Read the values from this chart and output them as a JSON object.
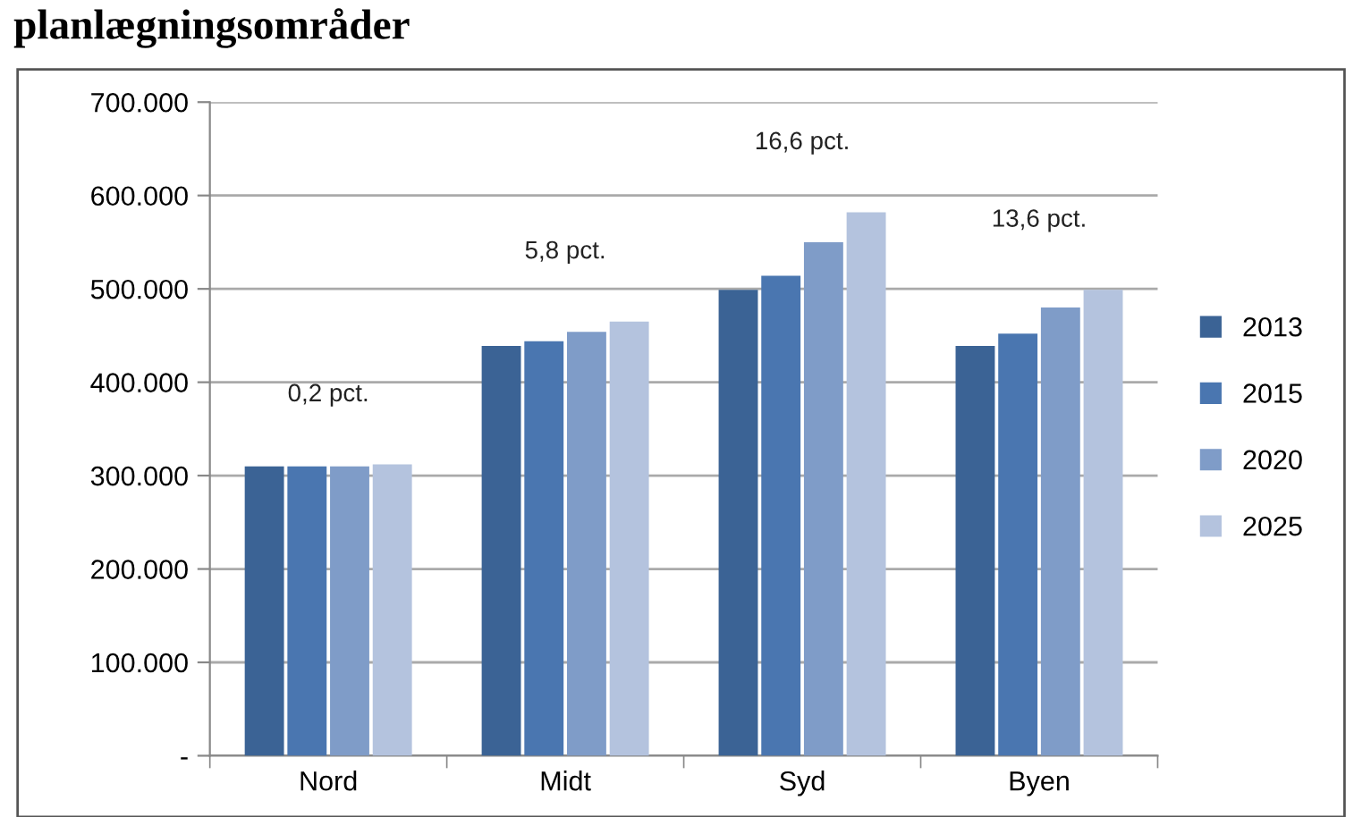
{
  "chart_data": {
    "type": "bar",
    "title": "planlægningsområder",
    "categories": [
      "Nord",
      "Midt",
      "Syd",
      "Byen"
    ],
    "series": [
      {
        "name": "2013",
        "color": "#3b6395",
        "values": [
          310000,
          439000,
          499000,
          439000
        ]
      },
      {
        "name": "2015",
        "color": "#4a76b0",
        "values": [
          310000,
          444000,
          514000,
          452000
        ]
      },
      {
        "name": "2020",
        "color": "#7f9cc8",
        "values": [
          310000,
          454000,
          550000,
          480000
        ]
      },
      {
        "name": "2025",
        "color": "#b4c3de",
        "values": [
          312000,
          465000,
          582000,
          499000
        ]
      }
    ],
    "ylim": [
      0,
      700000
    ],
    "yticks": [
      {
        "value": 0,
        "label": "-"
      },
      {
        "value": 100000,
        "label": "100.000"
      },
      {
        "value": 200000,
        "label": "200.000"
      },
      {
        "value": 300000,
        "label": "300.000"
      },
      {
        "value": 400000,
        "label": "400.000"
      },
      {
        "value": 500000,
        "label": "500.000"
      },
      {
        "value": 600000,
        "label": "600.000"
      },
      {
        "value": 700000,
        "label": "700.000"
      }
    ],
    "annotations": [
      "0,2 pct.",
      "5,8 pct.",
      "16,6 pct.",
      "13,6 pct."
    ],
    "grid": "y",
    "legend": "right"
  }
}
